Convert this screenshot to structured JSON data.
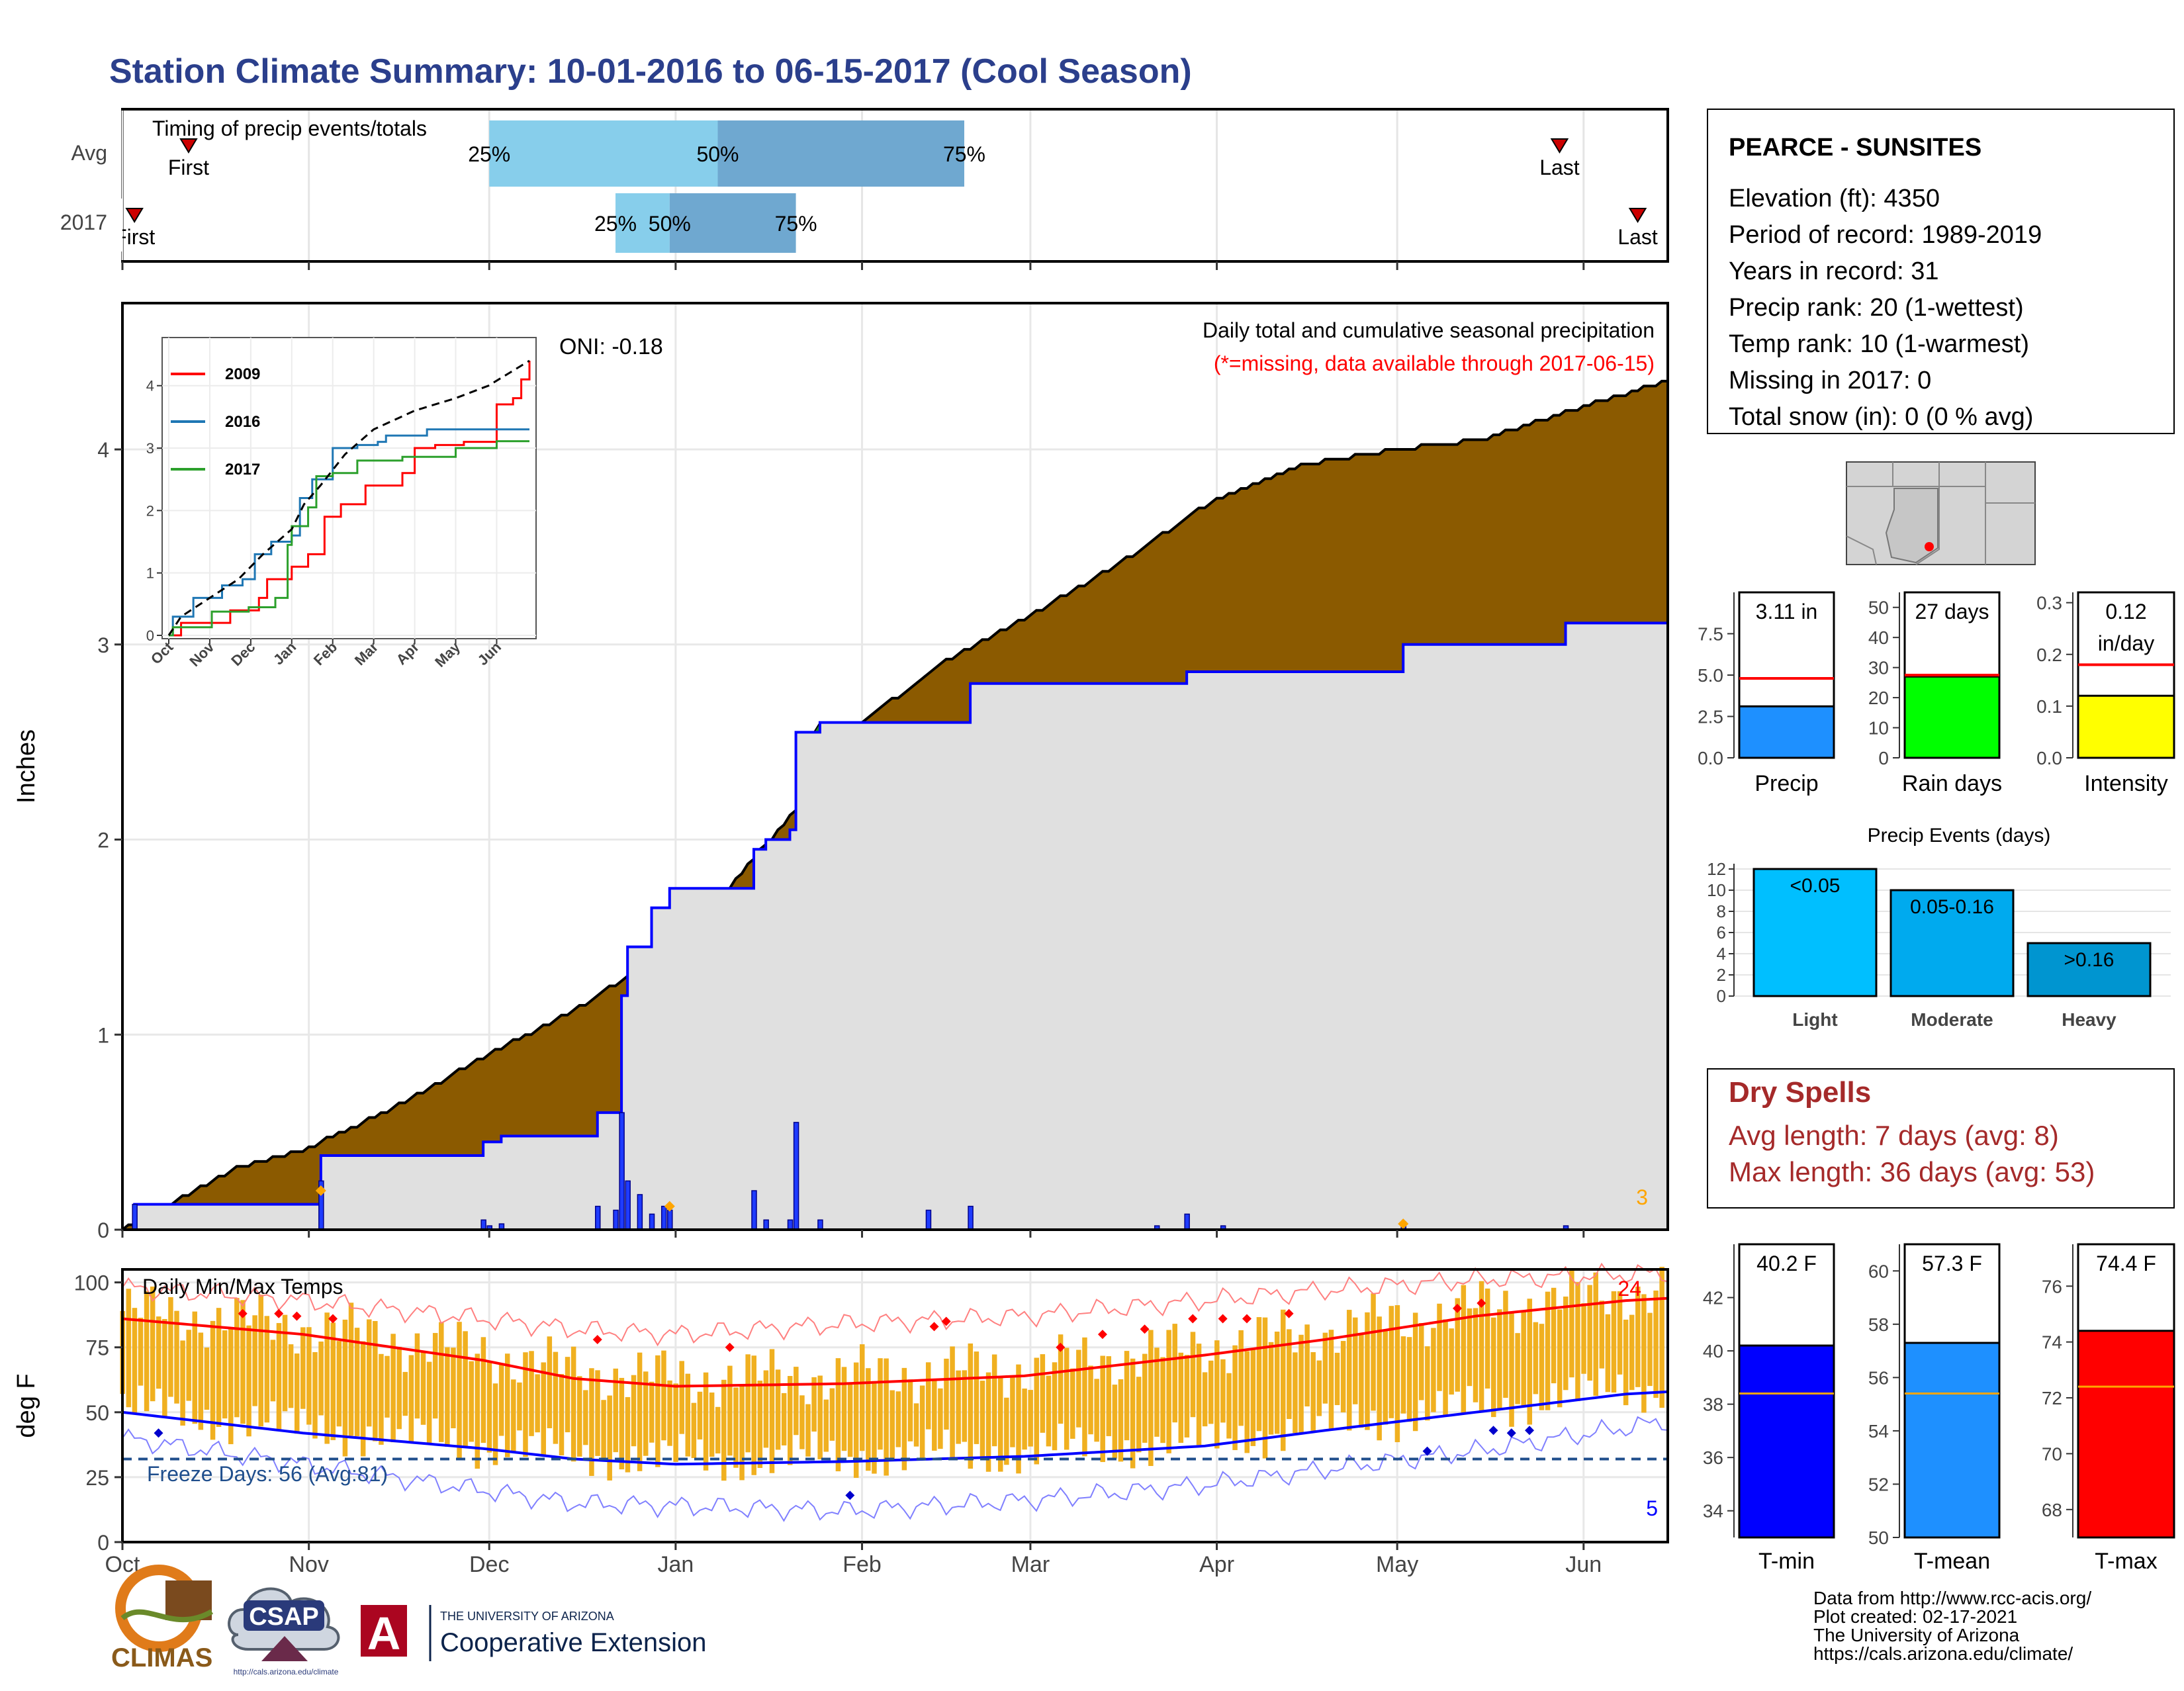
{
  "page": {
    "title": "Station Climate Summary: 10-01-2016 to 06-15-2017 (Cool Season)"
  },
  "colors": {
    "title": "#2b3f8c",
    "precip_fill": "#8b5a00",
    "current_fill": "#e0e0e0",
    "current_line": "#0000ff",
    "ahead_fill": "#228b22",
    "temp_bar": "#f0b020",
    "t_max_avg": "#ff0000",
    "t_min_avg": "#0000ff",
    "freeze_line": "#1f4e8c",
    "dry_spell_text": "#a52a2a",
    "missing_note": "#ff0000",
    "light": "#00bfff",
    "moderate": "#00aaee",
    "heavy": "#0095d0",
    "timing_light": "#87ceeb",
    "timing_dark": "#6fa8d0"
  },
  "timing": {
    "title": "Timing of precip events/totals",
    "rows": [
      {
        "label": "Avg",
        "first_label": "First",
        "last_label": "Last",
        "first": "2016-10-12",
        "last": "2017-05-28",
        "p25": "2016-12-01",
        "p50": "2017-01-08",
        "p75": "2017-02-18"
      },
      {
        "label": "2017",
        "first_label": "First",
        "last_label": "Last",
        "first": "2016-10-03",
        "last": "2017-06-10",
        "p25": "2016-12-22",
        "p50": "2016-12-31",
        "p75": "2017-01-21"
      }
    ],
    "pct_labels": [
      "25%",
      "50%",
      "75%"
    ]
  },
  "main_chart": {
    "ylabel": "Inches",
    "annotation": "Daily total and cumulative seasonal precipitation",
    "missing_note": "(*=missing, data available through 2017-06-15)",
    "oni": "ONI: -0.18",
    "count_label": "3",
    "yticks": [
      "0",
      "1",
      "2",
      "3",
      "4"
    ]
  },
  "chart_data": [
    {
      "type": "area",
      "name": "cumulative-precip",
      "x_start": "2016-10-01",
      "x_end": "2017-06-15",
      "ylim": [
        0,
        4.75
      ],
      "series": [
        {
          "name": "avg",
          "points": [
            [
              "2016-10-01",
              0
            ],
            [
              "2016-10-10",
              0.15
            ],
            [
              "2016-10-20",
              0.32
            ],
            [
              "2016-11-01",
              0.42
            ],
            [
              "2016-11-15",
              0.62
            ],
            [
              "2016-12-01",
              0.9
            ],
            [
              "2016-12-15",
              1.12
            ],
            [
              "2016-12-25",
              1.32
            ],
            [
              "2017-01-05",
              1.58
            ],
            [
              "2017-01-20",
              2.12
            ],
            [
              "2017-02-01",
              2.6
            ],
            [
              "2017-02-15",
              2.92
            ],
            [
              "2017-03-01",
              3.15
            ],
            [
              "2017-03-15",
              3.4
            ],
            [
              "2017-04-01",
              3.75
            ],
            [
              "2017-04-15",
              3.92
            ],
            [
              "2017-05-01",
              4.0
            ],
            [
              "2017-05-15",
              4.05
            ],
            [
              "2017-06-01",
              4.22
            ],
            [
              "2017-06-15",
              4.35
            ]
          ]
        },
        {
          "name": "2017",
          "points": [
            [
              "2016-10-01",
              0
            ],
            [
              "2016-10-03",
              0.13
            ],
            [
              "2016-11-02",
              0.13
            ],
            [
              "2016-11-03",
              0.38
            ],
            [
              "2016-11-28",
              0.38
            ],
            [
              "2016-11-30",
              0.45
            ],
            [
              "2016-12-03",
              0.48
            ],
            [
              "2016-12-18",
              0.48
            ],
            [
              "2016-12-19",
              0.6
            ],
            [
              "2016-12-22",
              0.6
            ],
            [
              "2016-12-23",
              1.2
            ],
            [
              "2016-12-24",
              1.45
            ],
            [
              "2016-12-28",
              1.65
            ],
            [
              "2016-12-31",
              1.75
            ],
            [
              "2017-01-13",
              1.75
            ],
            [
              "2017-01-14",
              1.95
            ],
            [
              "2017-01-16",
              2.0
            ],
            [
              "2017-01-20",
              2.05
            ],
            [
              "2017-01-21",
              2.55
            ],
            [
              "2017-01-25",
              2.6
            ],
            [
              "2017-02-18",
              2.6
            ],
            [
              "2017-02-19",
              2.8
            ],
            [
              "2017-03-22",
              2.8
            ],
            [
              "2017-03-27",
              2.86
            ],
            [
              "2017-05-01",
              2.86
            ],
            [
              "2017-05-02",
              3.0
            ],
            [
              "2017-05-28",
              3.0
            ],
            [
              "2017-05-29",
              3.11
            ],
            [
              "2017-06-15",
              3.11
            ]
          ]
        }
      ],
      "daily_values": [
        [
          "2016-10-03",
          0.13
        ],
        [
          "2016-11-03",
          0.25
        ],
        [
          "2016-11-30",
          0.05
        ],
        [
          "2016-12-01",
          0.02
        ],
        [
          "2016-12-03",
          0.03
        ],
        [
          "2016-12-19",
          0.12
        ],
        [
          "2016-12-22",
          0.1
        ],
        [
          "2016-12-23",
          0.6
        ],
        [
          "2016-12-24",
          0.25
        ],
        [
          "2016-12-26",
          0.18
        ],
        [
          "2016-12-28",
          0.08
        ],
        [
          "2016-12-30",
          0.12
        ],
        [
          "2016-12-31",
          0.1
        ],
        [
          "2017-01-14",
          0.2
        ],
        [
          "2017-01-16",
          0.05
        ],
        [
          "2017-01-20",
          0.05
        ],
        [
          "2017-01-21",
          0.55
        ],
        [
          "2017-01-25",
          0.05
        ],
        [
          "2017-02-12",
          0.1
        ],
        [
          "2017-02-19",
          0.12
        ],
        [
          "2017-03-22",
          0.02
        ],
        [
          "2017-03-27",
          0.08
        ],
        [
          "2017-04-02",
          0.02
        ],
        [
          "2017-05-02",
          0.04
        ],
        [
          "2017-05-29",
          0.02
        ]
      ]
    },
    {
      "type": "line",
      "name": "inset-years",
      "title": "",
      "categories": [
        "Oct",
        "Nov",
        "Dec",
        "Jan",
        "Feb",
        "Mar",
        "Apr",
        "May",
        "Jun"
      ],
      "ylim": [
        0,
        4.4
      ],
      "yticks": [
        "0",
        "1",
        "2",
        "3",
        "4"
      ],
      "series": [
        {
          "name": "2009",
          "color": "#ff0000",
          "points": [
            [
              0,
              0
            ],
            [
              0.3,
              0.2
            ],
            [
              0.8,
              0.2
            ],
            [
              1.5,
              0.4
            ],
            [
              2.2,
              0.6
            ],
            [
              2.4,
              0.9
            ],
            [
              3,
              1.1
            ],
            [
              3.4,
              1.3
            ],
            [
              3.8,
              1.9
            ],
            [
              4.2,
              2.1
            ],
            [
              4.8,
              2.4
            ],
            [
              5.3,
              2.4
            ],
            [
              5.7,
              2.6
            ],
            [
              6.0,
              3.0
            ],
            [
              6.5,
              3.05
            ],
            [
              7.2,
              3.1
            ],
            [
              7.8,
              3.1
            ],
            [
              8.0,
              3.7
            ],
            [
              8.4,
              3.8
            ],
            [
              8.6,
              4.1
            ],
            [
              8.8,
              4.4
            ]
          ]
        },
        {
          "name": "2016",
          "color": "#1f77b4",
          "points": [
            [
              0,
              0
            ],
            [
              0.1,
              0.3
            ],
            [
              0.6,
              0.6
            ],
            [
              1.3,
              0.8
            ],
            [
              1.8,
              0.9
            ],
            [
              2.1,
              1.3
            ],
            [
              2.5,
              1.5
            ],
            [
              3.0,
              1.6
            ],
            [
              3.2,
              2.2
            ],
            [
              3.5,
              2.5
            ],
            [
              4.0,
              3.0
            ],
            [
              4.6,
              3.05
            ],
            [
              5.1,
              3.1
            ],
            [
              5.3,
              3.2
            ],
            [
              6.0,
              3.2
            ],
            [
              6.3,
              3.3
            ],
            [
              6.8,
              3.3
            ],
            [
              8.8,
              3.3
            ]
          ]
        },
        {
          "name": "2017",
          "color": "#2ca02c",
          "points": [
            [
              0,
              0
            ],
            [
              0.1,
              0.13
            ],
            [
              1.05,
              0.38
            ],
            [
              1.95,
              0.45
            ],
            [
              2.6,
              0.6
            ],
            [
              2.9,
              1.45
            ],
            [
              3.0,
              1.75
            ],
            [
              3.4,
              2.05
            ],
            [
              3.6,
              2.55
            ],
            [
              4.0,
              2.6
            ],
            [
              4.6,
              2.8
            ],
            [
              5.7,
              2.86
            ],
            [
              7.0,
              3.0
            ],
            [
              8.0,
              3.11
            ],
            [
              8.8,
              3.11
            ]
          ]
        },
        {
          "name": "avg",
          "color": "#000000",
          "points": [
            [
              0,
              0
            ],
            [
              0.3,
              0.3
            ],
            [
              1.0,
              0.6
            ],
            [
              1.7,
              0.9
            ],
            [
              2.3,
              1.3
            ],
            [
              3.0,
              1.7
            ],
            [
              3.3,
              2.1
            ],
            [
              3.7,
              2.4
            ],
            [
              4.3,
              2.9
            ],
            [
              5.0,
              3.3
            ],
            [
              6.0,
              3.6
            ],
            [
              7.0,
              3.8
            ],
            [
              7.8,
              4.0
            ],
            [
              8.3,
              4.2
            ],
            [
              8.8,
              4.4
            ]
          ]
        }
      ]
    },
    {
      "type": "bar",
      "name": "summary-precip",
      "categories": [
        "Precip"
      ],
      "values": [
        3.11
      ],
      "avg": 4.8,
      "ylim": [
        0,
        10
      ],
      "yticks": [
        "0.0",
        "2.5",
        "5.0",
        "7.5"
      ],
      "label": "3.11 in",
      "color": "#1e90ff"
    },
    {
      "type": "bar",
      "name": "summary-raindays",
      "categories": [
        "Rain days"
      ],
      "values": [
        27
      ],
      "avg": 27.5,
      "ylim": [
        0,
        55
      ],
      "yticks": [
        "0",
        "10",
        "20",
        "30",
        "40",
        "50"
      ],
      "label": "27 days",
      "color": "#00ff00"
    },
    {
      "type": "bar",
      "name": "summary-intensity",
      "categories": [
        "Intensity"
      ],
      "values": [
        0.12
      ],
      "avg": 0.18,
      "ylim": [
        0,
        0.32
      ],
      "yticks": [
        "0.0",
        "0.1",
        "0.2",
        "0.3"
      ],
      "label": "0.12",
      "label2": "in/day",
      "color": "#ffff00"
    },
    {
      "type": "bar",
      "name": "precip-events",
      "title": "Precip Events (days)",
      "categories": [
        "Light",
        "Moderate",
        "Heavy"
      ],
      "bar_labels": [
        "<0.05",
        "0.05-0.16",
        ">0.16"
      ],
      "values": [
        12,
        10,
        5
      ],
      "ylim": [
        0,
        12.5
      ],
      "yticks": [
        "0",
        "2",
        "4",
        "6",
        "8",
        "10",
        "12"
      ]
    },
    {
      "type": "bar",
      "name": "daily-temps",
      "title": "Daily Min/Max Temps",
      "ylabel": "deg F",
      "ylim": [
        0,
        105
      ],
      "yticks": [
        "0",
        "25",
        "50",
        "75",
        "100"
      ],
      "xticks": [
        "Oct",
        "Nov",
        "Dec",
        "Jan",
        "Feb",
        "Mar",
        "Apr",
        "May",
        "Jun"
      ],
      "freeze_label": "Freeze Days: 56 (Avg:81)",
      "freeze_level": 32,
      "record_high_count": "24",
      "record_low_count": "5",
      "avg_max": [
        [
          0,
          86
        ],
        [
          30,
          80
        ],
        [
          60,
          70
        ],
        [
          75,
          63
        ],
        [
          92,
          60
        ],
        [
          120,
          61
        ],
        [
          150,
          64
        ],
        [
          180,
          72
        ],
        [
          200,
          78
        ],
        [
          225,
          87
        ],
        [
          250,
          93
        ],
        [
          258,
          94
        ]
      ],
      "avg_min": [
        [
          0,
          50
        ],
        [
          30,
          42
        ],
        [
          60,
          36
        ],
        [
          75,
          32
        ],
        [
          92,
          30
        ],
        [
          120,
          31
        ],
        [
          150,
          33
        ],
        [
          180,
          37
        ],
        [
          200,
          43
        ],
        [
          225,
          50
        ],
        [
          250,
          57
        ],
        [
          258,
          58
        ]
      ],
      "rec_max": [
        [
          0,
          98
        ],
        [
          30,
          93
        ],
        [
          60,
          86
        ],
        [
          75,
          82
        ],
        [
          92,
          80
        ],
        [
          120,
          84
        ],
        [
          150,
          87
        ],
        [
          180,
          93
        ],
        [
          200,
          97
        ],
        [
          225,
          101
        ],
        [
          250,
          103
        ],
        [
          258,
          104
        ]
      ],
      "rec_min": [
        [
          0,
          40
        ],
        [
          30,
          30
        ],
        [
          60,
          20
        ],
        [
          75,
          15
        ],
        [
          92,
          14
        ],
        [
          120,
          12
        ],
        [
          150,
          16
        ],
        [
          180,
          22
        ],
        [
          200,
          28
        ],
        [
          225,
          35
        ],
        [
          250,
          44
        ],
        [
          258,
          47
        ]
      ]
    },
    {
      "type": "bar",
      "name": "summary-tmin",
      "categories": [
        "T-min"
      ],
      "values": [
        40.2
      ],
      "avg": 38.4,
      "ylim": [
        33,
        44
      ],
      "yticks": [
        "34",
        "36",
        "38",
        "40",
        "42"
      ],
      "label": "40.2 F",
      "color": "#0000ff"
    },
    {
      "type": "bar",
      "name": "summary-tmean",
      "categories": [
        "T-mean"
      ],
      "values": [
        57.3
      ],
      "avg": 55.4,
      "ylim": [
        50,
        61
      ],
      "yticks": [
        "50",
        "52",
        "54",
        "56",
        "58",
        "60"
      ],
      "label": "57.3 F",
      "color": "#1e90ff"
    },
    {
      "type": "bar",
      "name": "summary-tmax",
      "categories": [
        "T-max"
      ],
      "values": [
        74.4
      ],
      "avg": 72.4,
      "ylim": [
        67,
        77.5
      ],
      "yticks": [
        "68",
        "70",
        "72",
        "74",
        "76"
      ],
      "label": "74.4 F",
      "color": "#ff0000"
    }
  ],
  "station": {
    "name": "PEARCE - SUNSITES",
    "lines": [
      "Elevation (ft): 4350",
      "Period of record: 1989-2019",
      "Years in record: 31",
      "Precip rank: 20 (1-wettest)",
      "Temp rank: 10 (1-warmest)",
      "Missing in 2017: 0",
      "Total snow (in): 0 (0 % avg)"
    ]
  },
  "dry_spells": {
    "title": "Dry Spells",
    "avg_line": "Avg length: 7 days (avg: 8)",
    "max_line": "Max length: 36 days (avg: 53)"
  },
  "footer": {
    "lines": [
      "Data from http://www.rcc-acis.org/",
      "Plot created: 02-17-2021",
      "The University of Arizona",
      "https://cals.arizona.edu/climate/"
    ],
    "logo_climas": "CLIMAS",
    "logo_csap": "CSAP",
    "logo_csap_url": "http://cals.arizona.edu/climate",
    "ua_small": "THE UNIVERSITY OF ARIZONA",
    "ua_big": "Cooperative Extension",
    "ua_letter": "A"
  }
}
